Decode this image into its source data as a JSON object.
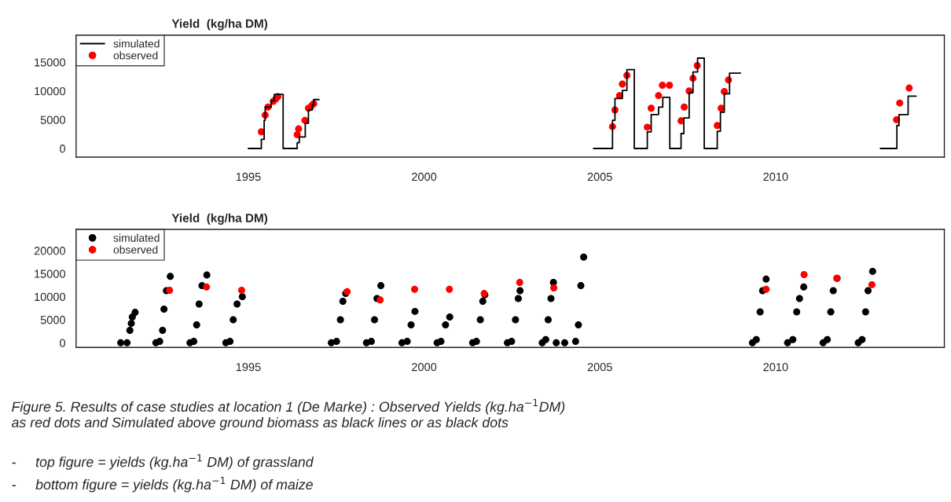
{
  "chart_data": [
    {
      "type": "step",
      "title": "Yield  (kg/ha DM)",
      "xlim": [
        1990.1,
        2014.8
      ],
      "xticks": [
        1995,
        2000,
        2005,
        2010
      ],
      "ylim": [
        -1500,
        19700
      ],
      "yticks": [
        0,
        5000,
        10000,
        15000
      ],
      "legend": "top left",
      "grid": false,
      "series": [
        {
          "name": "simulated",
          "color": "#000000",
          "marker": "none",
          "x": [
            1995.0,
            1995.37,
            1995.45,
            1995.48,
            1995.65,
            1995.74,
            1995.99,
            1996.39,
            1996.45,
            1996.62,
            1996.71,
            1996.82,
            1996.86,
            1997.01
          ],
          "values": [
            0,
            1600,
            4900,
            7200,
            8300,
            9400,
            0,
            1000,
            2000,
            4400,
            6700,
            7600,
            8500,
            8500
          ]
        },
        {
          "color": "#000000",
          "marker": "none",
          "x": [
            2004.82,
            2005.36,
            2005.43,
            2005.64,
            2005.77,
            2005.98,
            2006.35,
            2006.46,
            2006.67,
            2006.79,
            2006.99,
            2007.31,
            2007.39,
            2007.54,
            2007.65,
            2007.78,
            2007.97,
            2008.34,
            2008.43,
            2008.54,
            2008.69,
            2009.0
          ],
          "values": [
            0,
            4900,
            8700,
            10100,
            13700,
            0,
            2900,
            5900,
            7200,
            8900,
            0,
            2600,
            5300,
            9700,
            13300,
            15700,
            0,
            3000,
            6300,
            9500,
            13100,
            13100
          ]
        },
        {
          "color": "#000000",
          "marker": "none",
          "x": [
            2012.98,
            2013.45,
            2013.51,
            2013.77,
            2014.0
          ],
          "values": [
            0,
            4000,
            5900,
            9100,
            9100
          ]
        },
        {
          "name": "observed",
          "type": "scatter",
          "color": "#ff0000",
          "marker": "circle",
          "x": [
            1995.37,
            1995.48,
            1995.56,
            1995.71,
            1995.78,
            1995.84,
            1996.39,
            1996.43,
            1996.61,
            1996.71,
            1996.81,
            1996.86,
            2005.36,
            2005.43,
            2005.56,
            2005.64,
            2005.77,
            2006.35,
            2006.46,
            2006.67,
            2006.78,
            2006.98,
            2007.31,
            2007.4,
            2007.54,
            2007.65,
            2007.77,
            2008.34,
            2008.45,
            2008.54,
            2008.66,
            2013.44,
            2013.53,
            2013.8
          ],
          "values": [
            2900,
            5800,
            7200,
            8200,
            8600,
            9000,
            2400,
            3400,
            4900,
            7000,
            7500,
            7800,
            3800,
            6700,
            9200,
            11200,
            12700,
            3700,
            7000,
            9200,
            11000,
            11000,
            4800,
            7200,
            10000,
            12200,
            14400,
            4000,
            7000,
            9900,
            11900,
            5000,
            7900,
            10500
          ]
        }
      ]
    },
    {
      "type": "scatter",
      "title": "Yield  (kg/ha DM)",
      "xlim": [
        1990.1,
        2014.8
      ],
      "xticks": [
        1995,
        2000,
        2005,
        2010
      ],
      "ylim": [
        -1000,
        24600
      ],
      "yticks": [
        0,
        5000,
        10000,
        15000,
        20000
      ],
      "legend": "top left",
      "grid": false,
      "annotations": [
        "Figure 5. Results of case studies at location 1 (De Marke) : Observed Yields (kg.ha$^{−1}$DM)\nas red dots and Simulated above ground biomass as black lines or as black dots",
        "-     top figure = yields (kg.ha$^{−1}$ DM) of grassland",
        "-     bottom figure = yields (kg.ha$^{−1}$ DM) of maize"
      ],
      "series": [
        {
          "name": "simulated",
          "color": "#000000",
          "marker": "circle",
          "x": [
            1991.37,
            1991.55,
            1991.63,
            1991.67,
            1991.7,
            1991.78,
            1992.37,
            1992.48,
            1992.56,
            1992.6,
            1992.67,
            1992.78,
            1993.34,
            1993.45,
            1993.53,
            1993.6,
            1993.68,
            1993.82,
            1994.36,
            1994.48,
            1994.57,
            1994.68,
            1994.83,
            1997.36,
            1997.51,
            1997.62,
            1997.69,
            1997.77,
            1998.36,
            1998.5,
            1998.59,
            1998.66,
            1998.77,
            1999.37,
            1999.52,
            1999.63,
            1999.74,
            2000.37,
            2000.48,
            2000.61,
            2000.73,
            2001.38,
            2001.49,
            2001.6,
            2001.67,
            2001.73,
            2002.37,
            2002.49,
            2002.6,
            2002.68,
            2002.73,
            2003.36,
            2003.46,
            2003.53,
            2003.61,
            2003.68,
            2003.76,
            2004.0,
            2004.31,
            2004.39,
            2004.46,
            2004.54,
            2009.34,
            2009.45,
            2009.56,
            2009.63,
            2009.73,
            2010.34,
            2010.49,
            2010.6,
            2010.68,
            2010.8,
            2011.35,
            2011.47,
            2011.57,
            2011.64,
            2011.75,
            2012.35,
            2012.46,
            2012.56,
            2012.63,
            2012.76
          ],
          "values": [
            0,
            0,
            2700,
            4200,
            5600,
            6600,
            0,
            300,
            2700,
            7300,
            11300,
            14400,
            0,
            300,
            3900,
            8400,
            12400,
            14700,
            0,
            300,
            5000,
            8400,
            10000,
            0,
            300,
            5000,
            9000,
            10700,
            0,
            300,
            5000,
            9600,
            12400,
            0,
            300,
            3900,
            6800,
            0,
            300,
            3900,
            5600,
            0,
            300,
            5000,
            9000,
            10400,
            0,
            300,
            5000,
            9600,
            11300,
            0,
            700,
            5000,
            9600,
            13100,
            0,
            0,
            300,
            3900,
            12400,
            18600,
            0,
            700,
            6700,
            11300,
            13800,
            0,
            700,
            6700,
            9600,
            12100,
            0,
            700,
            6700,
            11300,
            14000,
            0,
            700,
            6700,
            11300,
            15500
          ]
        },
        {
          "name": "observed",
          "color": "#ff0000",
          "marker": "circle",
          "x": [
            1992.76,
            1993.81,
            1994.81,
            1997.81,
            1998.75,
            1999.73,
            2000.72,
            2001.71,
            2002.72,
            2003.69,
            2009.73,
            2010.81,
            2011.74,
            2012.74
          ],
          "values": [
            11400,
            12100,
            11400,
            11100,
            9300,
            11600,
            11600,
            10700,
            13100,
            11900,
            11600,
            14800,
            14000,
            12600
          ]
        }
      ]
    }
  ]
}
